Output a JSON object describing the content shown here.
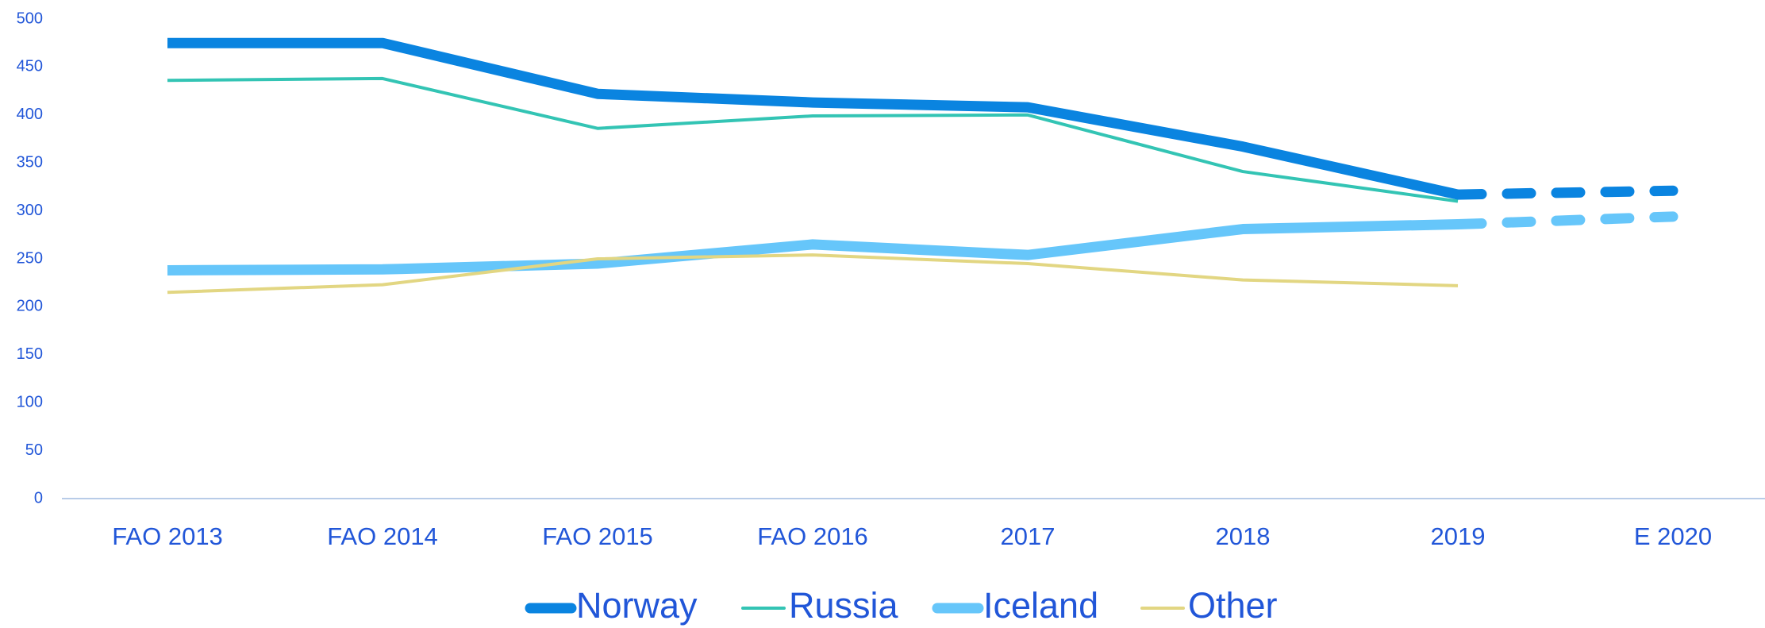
{
  "chart_data": {
    "type": "line",
    "categories": [
      "FAO 2013",
      "FAO 2014",
      "FAO 2015",
      "FAO 2016",
      "2017",
      "2018",
      "2019",
      "E 2020"
    ],
    "series": [
      {
        "name": "Norway",
        "color": "#0a84e0",
        "width": 13,
        "dashed_last": true,
        "values": [
          475,
          475,
          422,
          413,
          408,
          367,
          317,
          321
        ]
      },
      {
        "name": "Russia",
        "color": "#33c4b4",
        "width": 4,
        "dashed_last": false,
        "values": [
          436,
          438,
          386,
          399,
          400,
          341,
          310,
          null
        ]
      },
      {
        "name": "Iceland",
        "color": "#66c6fa",
        "width": 13,
        "dashed_last": true,
        "values": [
          238,
          239,
          245,
          265,
          254,
          281,
          286,
          294
        ]
      },
      {
        "name": "Other",
        "color": "#e2d682",
        "width": 4,
        "dashed_last": false,
        "values": [
          215,
          223,
          250,
          254,
          245,
          228,
          222,
          null
        ]
      }
    ],
    "ylim": [
      0,
      500
    ],
    "yticks": [
      0,
      50,
      100,
      150,
      200,
      250,
      300,
      350,
      400,
      450,
      500
    ],
    "grid": false,
    "legend": "bottom"
  }
}
